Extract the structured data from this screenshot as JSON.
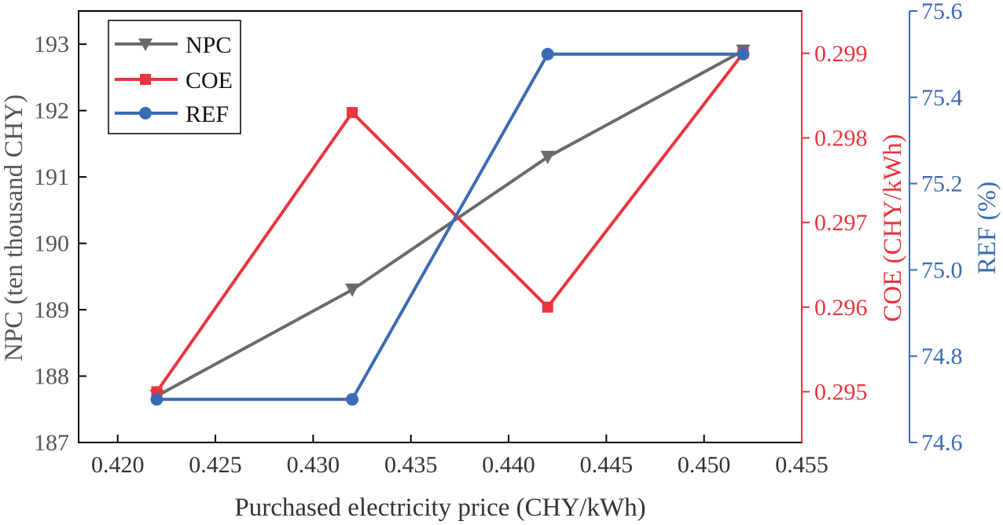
{
  "chart_data": {
    "type": "line",
    "xlabel": "Purchased electricity price (CHY/kWh)",
    "x": [
      0.422,
      0.432,
      0.442,
      0.452
    ],
    "xlim": [
      0.418,
      0.455
    ],
    "xticks": [
      0.42,
      0.425,
      0.43,
      0.435,
      0.44,
      0.445,
      0.45,
      0.455
    ],
    "xtick_labels": [
      "0.420",
      "0.425",
      "0.430",
      "0.435",
      "0.440",
      "0.445",
      "0.450",
      "0.455"
    ],
    "axes": [
      {
        "id": "npc",
        "position": "left",
        "label": "NPC (ten thousand CHY)",
        "ylim": [
          187,
          193.5
        ],
        "ticks": [
          187,
          188,
          189,
          190,
          191,
          192,
          193
        ],
        "tick_labels": [
          "187",
          "188",
          "189",
          "190",
          "191",
          "192",
          "193"
        ],
        "color": "#555555"
      },
      {
        "id": "coe",
        "position": "right",
        "label": "COE (CHY/kWh)",
        "ylim": [
          0.2944,
          0.2995
        ],
        "ticks": [
          0.295,
          0.296,
          0.297,
          0.298,
          0.299
        ],
        "tick_labels": [
          "0.295",
          "0.296",
          "0.297",
          "0.298",
          "0.299"
        ],
        "color": "#e8353f"
      },
      {
        "id": "ref",
        "position": "right-outer",
        "label": "REF (%)",
        "ylim": [
          74.6,
          75.6
        ],
        "ticks": [
          74.6,
          74.8,
          75.0,
          75.2,
          75.4,
          75.6
        ],
        "tick_labels": [
          "74.6",
          "74.8",
          "75.0",
          "75.2",
          "75.4",
          "75.6"
        ],
        "color": "#3d6bb3"
      }
    ],
    "series": [
      {
        "name": "NPC",
        "axis": "npc",
        "values": [
          187.7,
          189.3,
          191.3,
          192.9
        ],
        "color": "#6b6b6b",
        "marker": "triangle-down"
      },
      {
        "name": "COE",
        "axis": "coe",
        "values": [
          0.295,
          0.2983,
          0.296,
          0.299
        ],
        "color": "#e8353f",
        "marker": "square"
      },
      {
        "name": "REF",
        "axis": "ref",
        "values": [
          74.7,
          74.7,
          75.5,
          75.5
        ],
        "color": "#3d6bb3",
        "marker": "circle"
      }
    ],
    "legend": "top-left",
    "grid": false
  }
}
